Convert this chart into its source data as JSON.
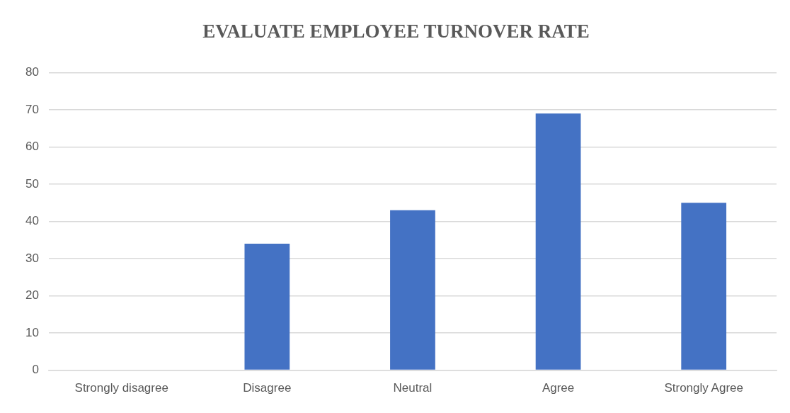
{
  "chart_data": {
    "type": "bar",
    "title": "EVALUATE EMPLOYEE TURNOVER RATE",
    "categories": [
      "Strongly disagree",
      "Disagree",
      "Neutral",
      "Agree",
      "Strongly Agree"
    ],
    "values": [
      0,
      34,
      43,
      69,
      45
    ],
    "color": "#4472c4",
    "ylim": [
      0,
      80
    ],
    "yticks": [
      0,
      10,
      20,
      30,
      40,
      50,
      60,
      70,
      80
    ],
    "grid": "y"
  }
}
